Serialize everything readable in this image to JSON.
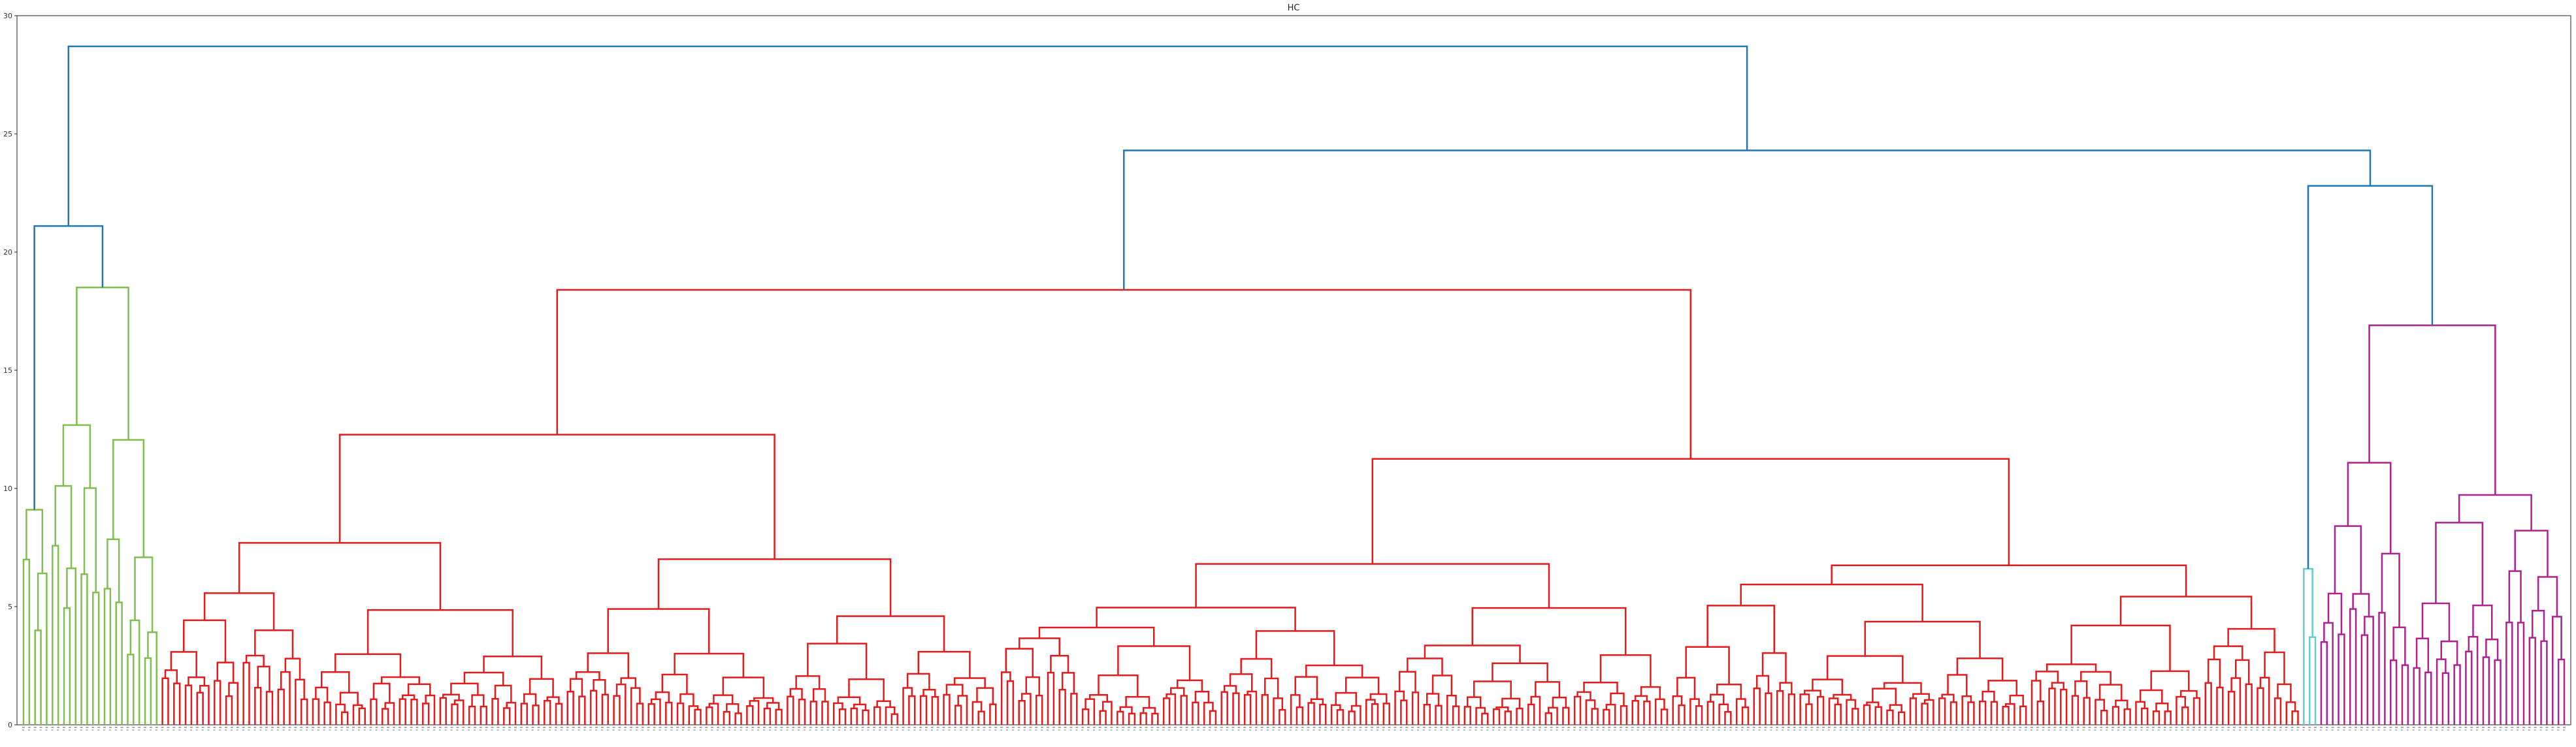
{
  "chart_data": {
    "type": "dendrogram",
    "title": "HC",
    "xlabel": "",
    "ylabel": "",
    "ylim": [
      0,
      30
    ],
    "y_ticks": [
      0,
      5,
      10,
      15,
      20,
      25,
      30
    ],
    "grid": false,
    "leaf_count": 440,
    "clusters": [
      {
        "name": "green",
        "color": "#7fbf4f",
        "leaf_range": [
          0,
          23
        ],
        "merge_height": 18.5
      },
      {
        "name": "red",
        "color": "#e41a1c",
        "leaf_range": [
          24,
          393
        ],
        "merge_height": 18.4
      },
      {
        "name": "cyan",
        "color": "#66cccc",
        "leaf_range": [
          394,
          396
        ],
        "merge_height": 6.6
      },
      {
        "name": "magenta",
        "color": "#b0208f",
        "leaf_range": [
          397,
          439
        ],
        "merge_height": 16.9
      }
    ],
    "top_links": [
      {
        "left": "green",
        "right": "root-right",
        "height": 28.7
      },
      {
        "left": "red",
        "right": "cyan+magenta",
        "height": 24.3
      },
      {
        "left": "cyan",
        "right": "magenta",
        "height": 22.8
      },
      {
        "left": "green-a",
        "right": "green-b",
        "height": 21.1
      }
    ],
    "link_color_above_threshold": "#1f77b4"
  }
}
